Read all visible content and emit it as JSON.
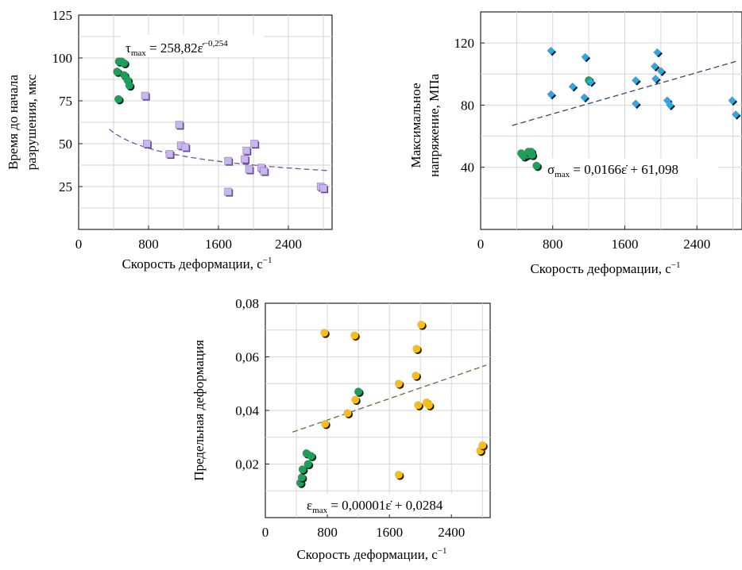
{
  "charts": [
    {
      "ylabel_lines": [
        "Время до начала",
        "разрушения, мкс"
      ],
      "xlabel": "Скорость деформации, с",
      "xlabel_sup": "−1",
      "eq": {
        "lhs": "τ",
        "sub": "max",
        "mid": " = 258,82ε̇",
        "sup": "−0,254"
      }
    },
    {
      "ylabel_lines": [
        "Максимальное",
        "напряжение, МПа"
      ],
      "xlabel": "Скорость деформации, с",
      "xlabel_sup": "−1",
      "eq": {
        "lhs": "σ",
        "sub": "max",
        "mid": " = 0,0166ε̇ + 61,098",
        "sup": ""
      }
    },
    {
      "ylabel_lines": [
        "Предельная деформация"
      ],
      "xlabel": "Скорость деформации, с",
      "xlabel_sup": "−1",
      "eq": {
        "lhs": "ε",
        "sub": "max",
        "mid": " = 0,00001ε̇ + 0,0284",
        "sup": ""
      }
    }
  ],
  "colors": {
    "green": "#1f9e5a",
    "lilac": "#c9b6ec",
    "blue": "#31a6e3",
    "yellow": "#f6be1d",
    "trend1": "#7d4fa0",
    "trend2": "#2f4a73",
    "trend3": "#4f7a3c",
    "grid": "#d6d6d6"
  },
  "chart_data": [
    {
      "type": "scatter",
      "title": "",
      "xlabel": "Скорость деформации, с−1",
      "ylabel": "Время до начала разрушения, мкс",
      "xlim": [
        0,
        2900
      ],
      "ylim": [
        0,
        125
      ],
      "xticks": [
        0,
        800,
        1600,
        2400
      ],
      "yticks": [
        25,
        50,
        75,
        100,
        125
      ],
      "grid": true,
      "series": [
        {
          "marker": "circle",
          "color": "#1f9e5a",
          "points": [
            [
              460,
              98
            ],
            [
              490,
              98
            ],
            [
              520,
              97
            ],
            [
              440,
              92
            ],
            [
              520,
              90
            ],
            [
              560,
              87
            ],
            [
              580,
              84
            ],
            [
              455,
              76
            ]
          ]
        },
        {
          "marker": "square",
          "color": "#c9b6ec",
          "points": [
            [
              760,
              78
            ],
            [
              780,
              50
            ],
            [
              1040,
              44
            ],
            [
              1150,
              61
            ],
            [
              1170,
              49
            ],
            [
              1220,
              48
            ],
            [
              1710,
              40
            ],
            [
              1710,
              22
            ],
            [
              1920,
              46
            ],
            [
              1900,
              41
            ],
            [
              1950,
              35
            ],
            [
              2010,
              50
            ],
            [
              2090,
              36
            ],
            [
              2120,
              34
            ],
            [
              2770,
              25
            ],
            [
              2800,
              24
            ]
          ]
        }
      ],
      "trend": {
        "formula": "power",
        "a": 258.82,
        "b": -0.254,
        "x_range": [
          350,
          2860
        ]
      },
      "annotation": "τmax = 258,82ε̇−0,254"
    },
    {
      "type": "scatter",
      "title": "",
      "xlabel": "Скорость деформации, с−1",
      "ylabel": "Максимальное напряжение, МПа",
      "xlim": [
        0,
        2900
      ],
      "ylim": [
        0,
        140
      ],
      "xticks": [
        0,
        800,
        1600,
        2400
      ],
      "yticks": [
        40,
        80,
        120
      ],
      "grid": true,
      "series": [
        {
          "marker": "circle",
          "color": "#1f9e5a",
          "points": [
            [
              450,
              49
            ],
            [
              480,
              47
            ],
            [
              510,
              48
            ],
            [
              530,
              50
            ],
            [
              560,
              50
            ],
            [
              570,
              48
            ],
            [
              620,
              41
            ],
            [
              1200,
              96
            ]
          ]
        },
        {
          "marker": "diamond",
          "color": "#31a6e3",
          "points": [
            [
              780,
              115
            ],
            [
              780,
              87
            ],
            [
              1020,
              92
            ],
            [
              1150,
              85
            ],
            [
              1160,
              111
            ],
            [
              1220,
              95
            ],
            [
              1720,
              96
            ],
            [
              1720,
              81
            ],
            [
              1930,
              105
            ],
            [
              1940,
              97
            ],
            [
              1960,
              114
            ],
            [
              2000,
              102
            ],
            [
              2070,
              83
            ],
            [
              2100,
              80
            ],
            [
              2790,
              83
            ],
            [
              2830,
              74
            ]
          ]
        }
      ],
      "trend": {
        "formula": "linear",
        "slope": 0.0166,
        "intercept": 61.098,
        "x_range": [
          350,
          2850
        ]
      },
      "annotation": "σmax = 0,0166ε̇ + 61,098"
    },
    {
      "type": "scatter",
      "title": "",
      "xlabel": "Скорость деформации, с−1",
      "ylabel": "Предельная деформация",
      "xlim": [
        0,
        2900
      ],
      "ylim": [
        0,
        0.08
      ],
      "xticks": [
        0,
        800,
        1600,
        2400
      ],
      "yticks": [
        0.02,
        0.04,
        0.06,
        0.08
      ],
      "ytick_labels": [
        "0,02",
        "0,04",
        "0,06",
        "0,08"
      ],
      "grid": true,
      "series": [
        {
          "marker": "circle",
          "color": "#1f9e5a",
          "points": [
            [
              450,
              0.013
            ],
            [
              470,
              0.015
            ],
            [
              480,
              0.018
            ],
            [
              530,
              0.024
            ],
            [
              550,
              0.02
            ],
            [
              590,
              0.023
            ],
            [
              1200,
              0.047
            ]
          ]
        },
        {
          "marker": "circle",
          "color": "#f6be1d",
          "points": [
            [
              760,
              0.069
            ],
            [
              770,
              0.035
            ],
            [
              1060,
              0.039
            ],
            [
              1150,
              0.068
            ],
            [
              1160,
              0.044
            ],
            [
              1720,
              0.05
            ],
            [
              1720,
              0.016
            ],
            [
              1950,
              0.063
            ],
            [
              1940,
              0.053
            ],
            [
              1970,
              0.042
            ],
            [
              2010,
              0.072
            ],
            [
              2080,
              0.043
            ],
            [
              2110,
              0.042
            ],
            [
              2770,
              0.025
            ],
            [
              2800,
              0.027
            ]
          ]
        }
      ],
      "trend": {
        "formula": "linear",
        "slope": 1e-05,
        "intercept": 0.0284,
        "x_range": [
          350,
          2850
        ]
      },
      "annotation": "εmax = 0,00001ε̇ + 0,0284"
    }
  ]
}
